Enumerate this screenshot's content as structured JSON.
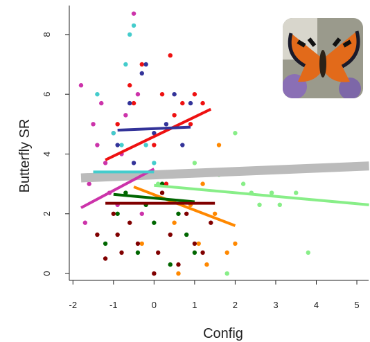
{
  "chart_data": {
    "type": "scatter",
    "x_label": "Config",
    "y_label": "Butterfly SR",
    "xlim": [
      -2.09,
      5.29
    ],
    "ylim": [
      -0.23,
      8.97
    ],
    "xticks": [
      -2,
      -1,
      0,
      1,
      2,
      3,
      4,
      5
    ],
    "yticks": [
      0,
      2,
      4,
      6,
      8
    ],
    "series": [
      {
        "color": "#bbbbbb",
        "line": {
          "x": [
            -1.8,
            5.3
          ],
          "y": [
            3.2,
            3.6
          ]
        }
      },
      {
        "color": "#cc33aa",
        "x": [
          -1.8,
          -1.7,
          -1.5,
          -1.4,
          -1.3,
          -1.2,
          -1.0,
          -0.9,
          -0.7,
          -0.5,
          -0.4,
          -0.3,
          -1.6,
          -1.1,
          -0.8
        ],
        "y": [
          6.3,
          1.7,
          5.0,
          4.3,
          5.7,
          3.7,
          4.7,
          2.3,
          5.3,
          8.7,
          6.0,
          2.0,
          3.0,
          2.7,
          4.0
        ],
        "line": {
          "x": [
            -1.8,
            0
          ],
          "y": [
            2.2,
            3.5
          ]
        }
      },
      {
        "color": "#44cccc",
        "x": [
          -1.4,
          -1.2,
          -0.8,
          -0.6,
          -0.5,
          -0.4,
          -0.2,
          -1.0,
          -0.7,
          0.0
        ],
        "y": [
          6.0,
          3.3,
          4.3,
          8.0,
          8.3,
          3.3,
          4.3,
          4.7,
          7.0,
          3.7
        ],
        "line": {
          "x": [
            -1.5,
            0
          ],
          "y": [
            3.4,
            3.4
          ]
        }
      },
      {
        "color": "#ee1111",
        "x": [
          -0.9,
          -0.6,
          -0.3,
          0.0,
          0.2,
          0.4,
          0.5,
          0.7,
          0.9,
          1.0,
          1.2,
          -0.5,
          0.3
        ],
        "y": [
          5.0,
          6.3,
          7.0,
          4.3,
          6.0,
          7.3,
          5.3,
          5.7,
          5.0,
          6.0,
          5.7,
          5.7,
          3.0
        ],
        "line": {
          "x": [
            -1.2,
            1.4
          ],
          "y": [
            3.8,
            5.5
          ]
        }
      },
      {
        "color": "#333399",
        "x": [
          -0.9,
          -0.6,
          -0.3,
          -0.2,
          0.0,
          0.3,
          0.5,
          0.7,
          -0.5,
          0.9
        ],
        "y": [
          4.3,
          5.7,
          6.7,
          7.0,
          4.7,
          5.0,
          6.0,
          4.3,
          3.7,
          5.7
        ],
        "line": {
          "x": [
            -0.9,
            0.9
          ],
          "y": [
            4.8,
            4.9
          ]
        }
      },
      {
        "color": "#ff8800",
        "x": [
          -0.3,
          0.6,
          0.9,
          1.1,
          1.3,
          1.5,
          1.6,
          1.8,
          2.0,
          1.2,
          0.5
        ],
        "y": [
          1.0,
          0.0,
          2.3,
          1.0,
          0.3,
          2.0,
          4.3,
          0.7,
          1.0,
          3.0,
          1.7
        ],
        "line": {
          "x": [
            -0.5,
            2.0
          ],
          "y": [
            2.9,
            1.6
          ]
        }
      },
      {
        "color": "#88ee88",
        "x": [
          0.1,
          1.0,
          1.6,
          2.0,
          2.4,
          2.6,
          3.1,
          3.5,
          3.8,
          2.9,
          2.2,
          1.8
        ],
        "y": [
          3.0,
          3.7,
          3.3,
          4.7,
          2.7,
          2.3,
          2.3,
          2.7,
          0.7,
          2.7,
          3.0,
          0.0
        ],
        "line": {
          "x": [
            0,
            5.3
          ],
          "y": [
            2.95,
            2.3
          ]
        }
      },
      {
        "color": "#006600",
        "x": [
          -1.2,
          -0.9,
          -0.6,
          -0.4,
          -0.2,
          0,
          0.2,
          0.4,
          0.6,
          0.8,
          1.0,
          -0.7
        ],
        "y": [
          1.0,
          2.0,
          3.3,
          0.7,
          2.3,
          1.7,
          3.0,
          0.3,
          2.0,
          1.3,
          0.7,
          2.7
        ],
        "line": {
          "x": [
            -1.0,
            1.0
          ],
          "y": [
            2.65,
            2.4
          ]
        }
      },
      {
        "color": "#800000",
        "x": [
          -1.4,
          -1.2,
          -1.0,
          -0.8,
          -0.6,
          -0.4,
          -0.2,
          0,
          0.2,
          0.4,
          0.6,
          0.8,
          1.0,
          1.2,
          1.4,
          -0.9,
          0.1
        ],
        "y": [
          1.3,
          0.5,
          2.0,
          0.7,
          1.7,
          1.0,
          3.3,
          0.0,
          2.7,
          1.3,
          0.3,
          2.0,
          1.0,
          0.7,
          1.7,
          1.3,
          0.7
        ],
        "line": {
          "x": [
            -1.2,
            1.5
          ],
          "y": [
            2.35,
            2.35
          ]
        }
      }
    ]
  }
}
